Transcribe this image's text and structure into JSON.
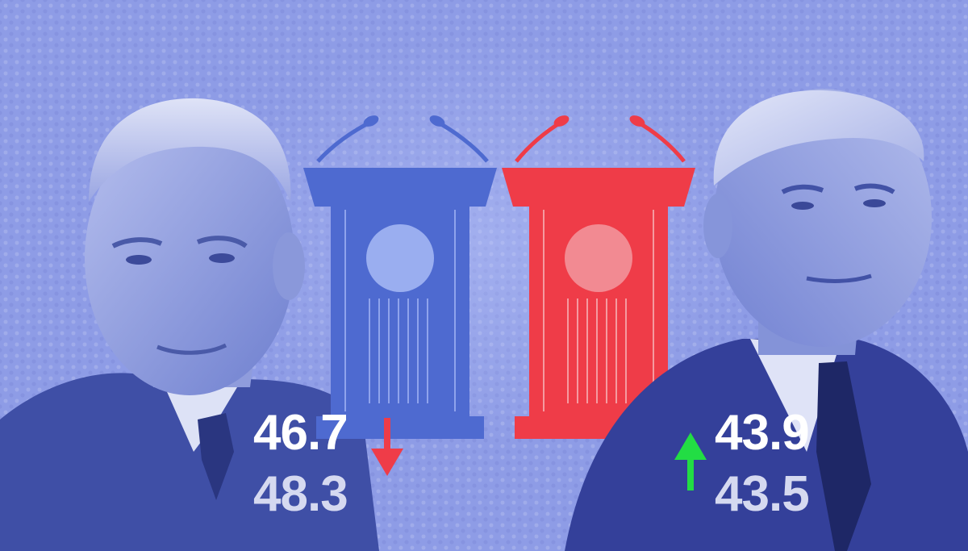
{
  "colors": {
    "background": "#8e9ce6",
    "blue_podium": "#4e6ad0",
    "red_podium": "#ef3c48",
    "down_arrow": "#ef3c48",
    "up_arrow": "#22dd44"
  },
  "left_candidate": {
    "current": "46.7",
    "previous": "48.3",
    "trend_icon": "down-arrow-icon"
  },
  "right_candidate": {
    "current": "43.9",
    "previous": "43.5",
    "trend_icon": "up-arrow-icon"
  }
}
